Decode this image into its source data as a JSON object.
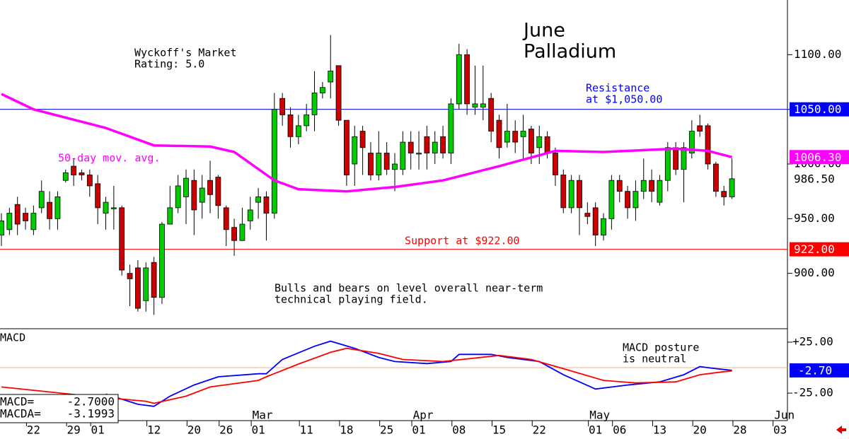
{
  "chart_data": [
    {
      "type": "candlestick",
      "title": [
        "June",
        "Palladium"
      ],
      "rating": [
        "Wyckoff's Market",
        "Rating: 5.0"
      ],
      "annotations": {
        "resistance": [
          "Resistance",
          "at $1,050.00"
        ],
        "support": "Support at $922.00",
        "comment": [
          "Bulls and bears on level overall near-term",
          "technical playing field."
        ]
      },
      "up_color": "#00cc00",
      "down_color": "#cc0000",
      "ohlc": [
        [
          935,
          955,
          925,
          948
        ],
        [
          940,
          960,
          935,
          955
        ],
        [
          963,
          970,
          935,
          945
        ],
        [
          955,
          960,
          940,
          948
        ],
        [
          940,
          962,
          935,
          955
        ],
        [
          960,
          985,
          955,
          975
        ],
        [
          965,
          975,
          940,
          950
        ],
        [
          950,
          975,
          940,
          970
        ],
        [
          985,
          995,
          983,
          992
        ],
        [
          998,
          1005,
          980,
          990
        ],
        [
          992,
          995,
          985,
          990
        ],
        [
          990,
          995,
          970,
          980
        ],
        [
          982,
          990,
          945,
          960
        ],
        [
          955,
          970,
          940,
          965
        ],
        [
          960,
          980,
          940,
          960
        ],
        [
          960,
          962,
          898,
          903
        ],
        [
          900,
          908,
          870,
          895
        ],
        [
          905,
          912,
          865,
          868
        ],
        [
          875,
          910,
          865,
          905
        ],
        [
          910,
          915,
          862,
          878
        ],
        [
          878,
          947,
          872,
          945
        ],
        [
          945,
          980,
          945,
          960
        ],
        [
          960,
          990,
          955,
          980
        ],
        [
          970,
          995,
          945,
          987
        ],
        [
          985,
          995,
          935,
          958
        ],
        [
          965,
          990,
          950,
          978
        ],
        [
          985,
          1003,
          955,
          972
        ],
        [
          988,
          990,
          950,
          962
        ],
        [
          960,
          962,
          925,
          940
        ],
        [
          942,
          950,
          916,
          930
        ],
        [
          930,
          960,
          930,
          945
        ],
        [
          948,
          970,
          940,
          958
        ],
        [
          965,
          978,
          950,
          970
        ],
        [
          970,
          975,
          930,
          955
        ],
        [
          955,
          1065,
          950,
          1050
        ],
        [
          1060,
          1065,
          1035,
          1045
        ],
        [
          1045,
          1052,
          1015,
          1025
        ],
        [
          1025,
          1045,
          1018,
          1035
        ],
        [
          1035,
          1055,
          1030,
          1045
        ],
        [
          1045,
          1085,
          1030,
          1065
        ],
        [
          1065,
          1075,
          1060,
          1070
        ],
        [
          1075,
          1118,
          1060,
          1085
        ],
        [
          1090,
          1090,
          1035,
          1040
        ],
        [
          1040,
          1040,
          980,
          990
        ],
        [
          1000,
          1035,
          980,
          1025
        ],
        [
          1030,
          1035,
          990,
          1015
        ],
        [
          1010,
          1020,
          985,
          990
        ],
        [
          990,
          1030,
          985,
          1010
        ],
        [
          1010,
          1020,
          990,
          995
        ],
        [
          995,
          1010,
          975,
          1000
        ],
        [
          995,
          1030,
          990,
          1020
        ],
        [
          1020,
          1030,
          995,
          1010
        ],
        [
          1010,
          1030,
          995,
          1010
        ],
        [
          1025,
          1035,
          995,
          1010
        ],
        [
          1010,
          1030,
          1000,
          1020
        ],
        [
          1025,
          1035,
          1005,
          1010
        ],
        [
          1010,
          1060,
          1000,
          1055
        ],
        [
          1055,
          1110,
          1050,
          1100
        ],
        [
          1100,
          1105,
          1045,
          1055
        ],
        [
          1052,
          1090,
          1045,
          1055
        ],
        [
          1052,
          1090,
          1040,
          1055
        ],
        [
          1060,
          1065,
          1020,
          1030
        ],
        [
          1040,
          1045,
          1005,
          1015
        ],
        [
          1020,
          1055,
          1015,
          1030
        ],
        [
          1030,
          1040,
          1010,
          1020
        ],
        [
          1025,
          1045,
          1005,
          1030
        ],
        [
          1032,
          1035,
          1000,
          1010
        ],
        [
          1015,
          1035,
          1000,
          1025
        ],
        [
          1025,
          1030,
          1005,
          1010
        ],
        [
          1010,
          1015,
          980,
          990
        ],
        [
          990,
          995,
          955,
          960
        ],
        [
          960,
          990,
          955,
          985
        ],
        [
          985,
          990,
          935,
          960
        ],
        [
          955,
          965,
          945,
          952
        ],
        [
          960,
          965,
          925,
          935
        ],
        [
          935,
          955,
          930,
          950
        ],
        [
          950,
          990,
          940,
          985
        ],
        [
          985,
          990,
          965,
          975
        ],
        [
          975,
          980,
          950,
          960
        ],
        [
          960,
          985,
          948,
          975
        ],
        [
          975,
          1005,
          968,
          985
        ],
        [
          985,
          995,
          965,
          975
        ],
        [
          965,
          990,
          962,
          985
        ],
        [
          985,
          1020,
          975,
          1015
        ],
        [
          1015,
          1020,
          990,
          995
        ],
        [
          995,
          1020,
          965,
          1015
        ],
        [
          1010,
          1040,
          1005,
          1030
        ],
        [
          1035,
          1045,
          1025,
          1030
        ],
        [
          1035,
          1037,
          995,
          1000
        ],
        [
          1000,
          1002,
          970,
          975
        ],
        [
          975,
          980,
          962,
          970
        ],
        [
          970,
          1005,
          968,
          986.5
        ]
      ],
      "last_close_label": "986.50",
      "xlim": [
        0,
        98
      ],
      "xticks": [
        {
          "value": 4,
          "label": "22"
        },
        {
          "value": 9,
          "label": "29"
        },
        {
          "value": 12,
          "label": "01"
        },
        {
          "value": 19,
          "label": "12"
        },
        {
          "value": 24,
          "label": "20"
        },
        {
          "value": 28,
          "label": "26"
        },
        {
          "value": 32,
          "label": "01"
        },
        {
          "value": 38,
          "label": "11"
        },
        {
          "value": 43,
          "label": "18"
        },
        {
          "value": 48,
          "label": "25"
        },
        {
          "value": 52,
          "label": "01"
        },
        {
          "value": 57,
          "label": "08"
        },
        {
          "value": 62,
          "label": "15"
        },
        {
          "value": 67,
          "label": "22"
        },
        {
          "value": 74,
          "label": "01"
        },
        {
          "value": 77,
          "label": "06"
        },
        {
          "value": 82,
          "label": "13"
        },
        {
          "value": 87,
          "label": "20"
        },
        {
          "value": 92,
          "label": "28"
        },
        {
          "value": 97,
          "label": "03"
        }
      ],
      "months": [
        {
          "value": 32,
          "label": "Mar"
        },
        {
          "value": 52,
          "label": "Apr"
        },
        {
          "value": 74,
          "label": "May"
        },
        {
          "value": 97,
          "label": "Jun"
        }
      ],
      "ylim": [
        850,
        1150
      ],
      "yticks": [
        {
          "value": 900,
          "label": "900.00"
        },
        {
          "value": 950,
          "label": "950.00"
        },
        {
          "value": 1000,
          "label": "1000.00"
        },
        {
          "value": 1050,
          "label": "1050.00"
        },
        {
          "value": 1100,
          "label": "1100.00"
        }
      ],
      "moving_average": {
        "name": "50-day mov. avg.",
        "color": "#ff00ff",
        "x": [
          0,
          4,
          13,
          19,
          26,
          29,
          34,
          37,
          43,
          49,
          55,
          62,
          69,
          75,
          84,
          88,
          91
        ],
        "values": [
          1064,
          1050,
          1033,
          1017,
          1016,
          1011,
          985,
          977,
          975,
          979,
          985,
          998,
          1012,
          1011,
          1014,
          1012,
          1006.3
        ],
        "last_label": "1006.30"
      },
      "levels": [
        {
          "value": 1050,
          "label": "1050.00",
          "color": "#0000ff"
        },
        {
          "value": 922,
          "label": "922.00",
          "color": "#ff0000"
        }
      ]
    },
    {
      "type": "line",
      "title": "MACD",
      "annotation": [
        "MACD posture",
        "is neutral"
      ],
      "ylim": [
        -52,
        37.5
      ],
      "yticks": [
        {
          "value": 25,
          "label": "+25.00"
        },
        {
          "value": -25,
          "label": "-25.00"
        }
      ],
      "xlim": [
        0,
        98
      ],
      "series": [
        {
          "name": "MACD=",
          "color": "#0000ff",
          "value_label": "-2.7000",
          "axis_label": "-2.70",
          "x": [
            13,
            17,
            19,
            21,
            24,
            27,
            32,
            33,
            35,
            39,
            41,
            44,
            47,
            49,
            53,
            56,
            57,
            61,
            63,
            67,
            70,
            74,
            78,
            82,
            85,
            87,
            89,
            91
          ],
          "values": [
            -26,
            -36,
            -38,
            -28,
            -17,
            -9,
            -6,
            -6,
            8,
            21,
            26,
            19,
            10,
            6,
            4,
            6,
            13,
            13,
            10,
            6,
            -7,
            -21,
            -17,
            -14,
            -7,
            1,
            -1,
            -2.7
          ]
        },
        {
          "name": "MACDA=",
          "color": "#ff0000",
          "value_label": "-3.1993",
          "x": [
            0,
            11,
            18,
            19,
            23,
            26,
            32,
            33,
            37,
            41,
            43,
            47,
            50,
            55,
            62,
            66,
            70,
            75,
            79,
            84,
            87,
            90,
            91
          ],
          "values": [
            -19,
            -28,
            -33,
            -35,
            -28,
            -19,
            -12.5,
            -9,
            3.5,
            15,
            19,
            14,
            8,
            6,
            12,
            8,
            -1,
            -12.5,
            -15,
            -14,
            -7,
            -4,
            -3.2
          ]
        }
      ]
    }
  ]
}
